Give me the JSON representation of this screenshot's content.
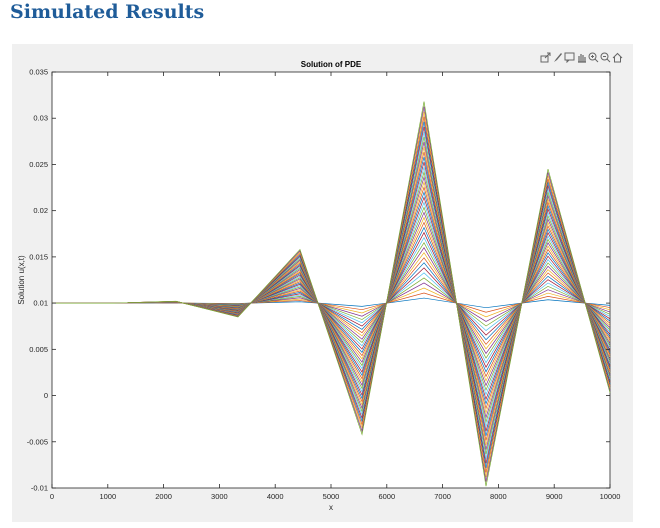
{
  "page": {
    "heading": "Simulated Results"
  },
  "toolbar": {
    "icons": [
      "export-icon",
      "brush-icon",
      "data-tip-icon",
      "pan-icon",
      "zoom-in-icon",
      "zoom-out-icon",
      "home-icon"
    ]
  },
  "chart_data": {
    "type": "line",
    "title": "Solution of PDE",
    "xlabel": "x",
    "ylabel": "Solution u(x,t)",
    "xlim": [
      0,
      10000
    ],
    "ylim": [
      -0.01,
      0.035
    ],
    "xticks": [
      "0",
      "1000",
      "2000",
      "3000",
      "4000",
      "5000",
      "6000",
      "7000",
      "8000",
      "9000",
      "10000"
    ],
    "yticks": [
      "-0.01",
      "-0.005",
      "0",
      "0.005",
      "0.01",
      "0.015",
      "0.02",
      "0.025",
      "0.03",
      "0.035"
    ],
    "grid": false,
    "legend": false,
    "x": [
      0,
      1111,
      2222,
      3333,
      4444,
      5556,
      6667,
      7778,
      8889,
      10000
    ],
    "baseline": [
      0.01,
      0.01,
      0.01,
      0.01,
      0.01,
      0.01,
      0.01,
      0.01,
      0.01,
      0.01
    ],
    "final_curve": [
      0.01,
      0.01,
      0.0102,
      0.0085,
      0.0158,
      -0.0042,
      0.0318,
      -0.0098,
      0.0245,
      0.0003
    ],
    "series_count": 40,
    "colors": [
      "#0072bd",
      "#d95319",
      "#edb120",
      "#7e2f8e",
      "#77ac30",
      "#4dbeee",
      "#a2142f"
    ]
  }
}
